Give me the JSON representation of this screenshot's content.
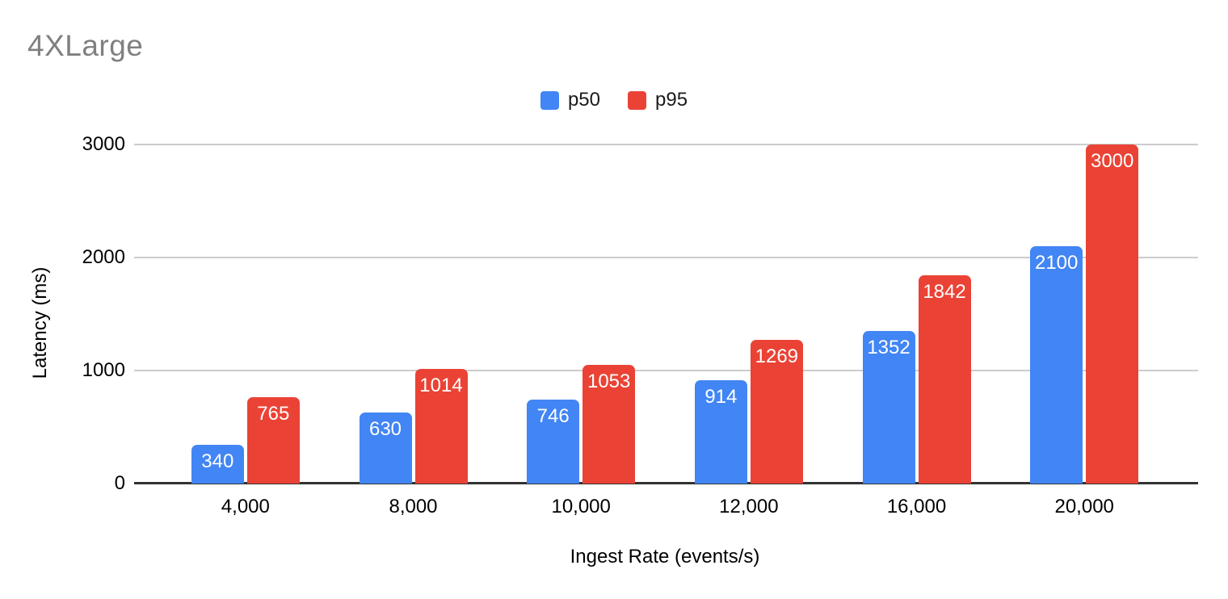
{
  "chart_data": {
    "type": "bar",
    "title": "4XLarge",
    "xlabel": "Ingest Rate (events/s)",
    "ylabel": "Latency (ms)",
    "categories": [
      "4,000",
      "8,000",
      "10,000",
      "12,000",
      "16,000",
      "20,000"
    ],
    "series": [
      {
        "name": "p50",
        "color": "#4285F4",
        "values": [
          340,
          630,
          746,
          914,
          1352,
          2100
        ]
      },
      {
        "name": "p95",
        "color": "#EA4335",
        "values": [
          765,
          1014,
          1053,
          1269,
          1842,
          3000
        ]
      }
    ],
    "ylim": [
      0,
      3000
    ],
    "yticks": [
      0,
      1000,
      2000,
      3000
    ],
    "grid": true,
    "legend_position": "top-center",
    "bar_value_labels": true
  },
  "colors": {
    "title": "#808080",
    "gridline": "#cccccc",
    "axis_line": "#333333",
    "tick_label": "#000000",
    "value_label": "#ffffff"
  }
}
